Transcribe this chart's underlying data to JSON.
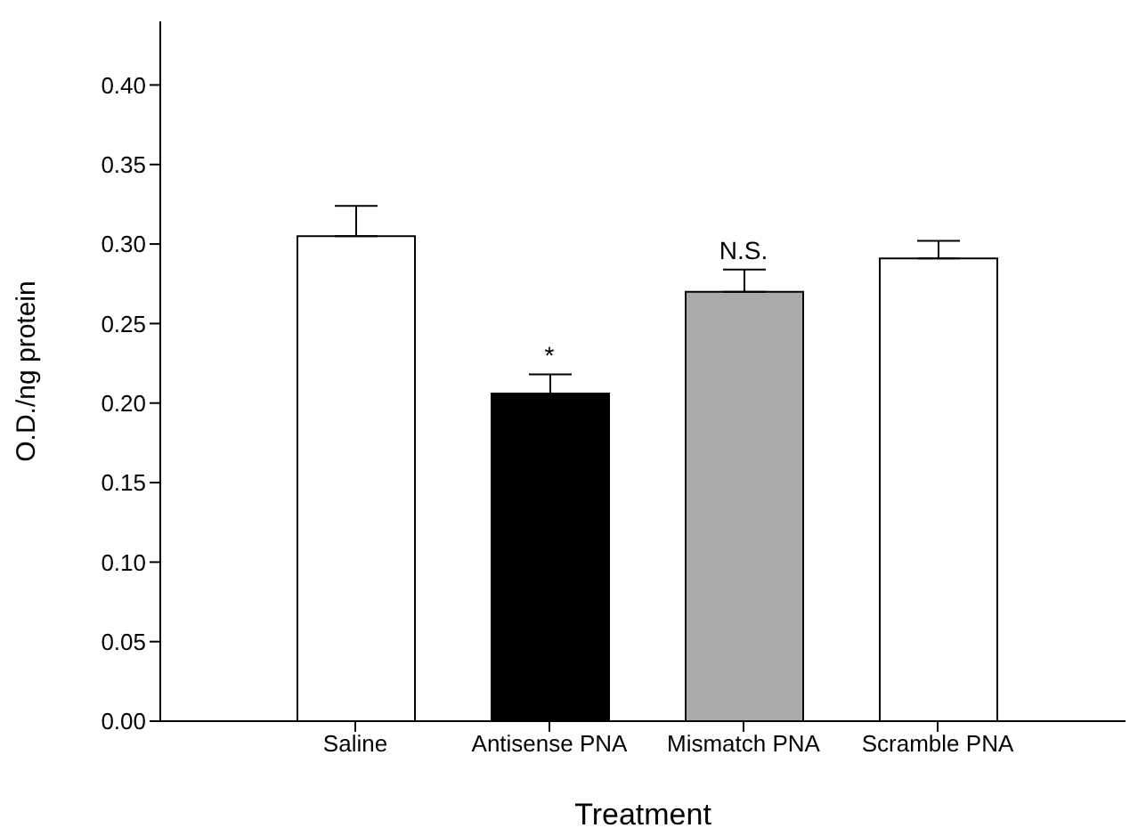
{
  "chart_data": {
    "type": "bar",
    "xlabel": "Treatment",
    "ylabel": "O.D./ng protein",
    "categories": [
      "Saline",
      "Antisense PNA",
      "Mismatch PNA",
      "Scramble PNA"
    ],
    "values": [
      0.305,
      0.206,
      0.27,
      0.291
    ],
    "colors": [
      "#ffffff",
      "#000000",
      "#aaaaaa",
      "#ffffff"
    ],
    "errors": [
      [
        0.305,
        0.324
      ],
      [
        0.206,
        0.218
      ],
      [
        0.27,
        0.284
      ],
      [
        0.291,
        0.302
      ]
    ],
    "ylim": [
      0,
      0.44
    ],
    "yticks": [
      {
        "value": 0,
        "label": "0.00"
      },
      {
        "value": 0.05,
        "label": "0.05"
      },
      {
        "value": 0.1,
        "label": "0.10"
      },
      {
        "value": 0.15,
        "label": "0.15"
      },
      {
        "value": 0.2,
        "label": "0.20"
      },
      {
        "value": 0.25,
        "label": "0.25"
      },
      {
        "value": 0.3,
        "label": "0.30"
      },
      {
        "value": 0.35,
        "label": "0.35"
      },
      {
        "value": 0.4,
        "label": "0.40"
      }
    ],
    "annotations": [
      {
        "text": "*",
        "x": "Antisense PNA",
        "y": 0.218
      },
      {
        "text": "N.S.",
        "x": "Mismatch PNA",
        "y": 0.284
      }
    ],
    "grid": false,
    "legend": false
  }
}
